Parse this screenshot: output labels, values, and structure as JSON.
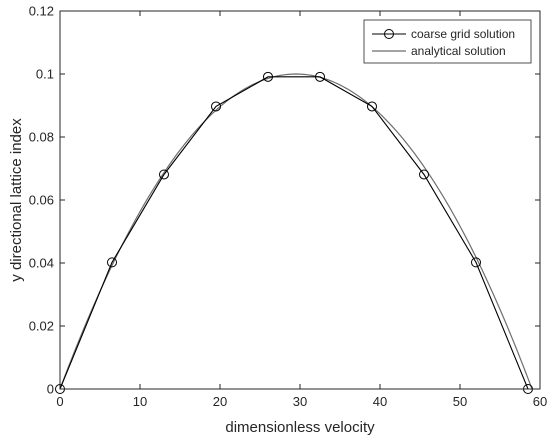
{
  "chart_data": {
    "type": "line",
    "title": "",
    "xlabel": "dimensionless velocity",
    "ylabel": "y directional lattice index",
    "xlim": [
      0,
      60
    ],
    "ylim": [
      0,
      0.12
    ],
    "xticks": [
      "0",
      "10",
      "20",
      "30",
      "40",
      "50",
      "60"
    ],
    "yticks": [
      "0",
      "0.02",
      "0.04",
      "0.06",
      "0.08",
      "0.1",
      "0.12"
    ],
    "grid": false,
    "legend_position": "top-right",
    "series": [
      {
        "name": "coarse grid solution",
        "style": "line-with-circle-markers",
        "color": "#000000",
        "x": [
          0,
          6.5,
          13,
          19.5,
          26,
          32.5,
          39,
          45.5,
          52,
          58.5
        ],
        "y": [
          0,
          0.0402,
          0.0681,
          0.0897,
          0.0991,
          0.0991,
          0.0897,
          0.0681,
          0.0402,
          0
        ]
      },
      {
        "name": "analytical solution",
        "style": "line",
        "color": "#6e6e6e",
        "function": "parabola",
        "x_range": [
          0,
          59
        ],
        "peak_x": 29.5,
        "peak_y": 0.1
      }
    ]
  }
}
